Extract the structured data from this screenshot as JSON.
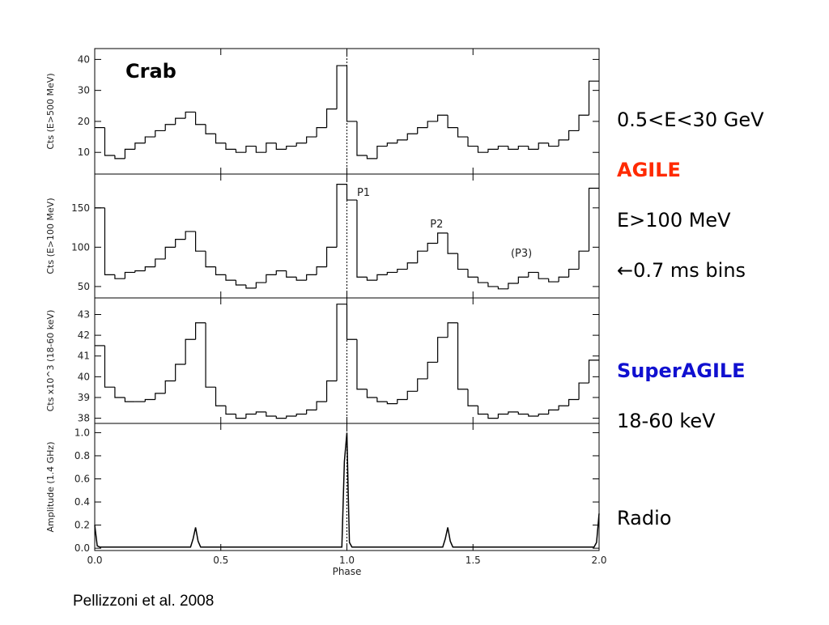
{
  "labels": {
    "crab": "Crab",
    "band1": "0.5<E<30 GeV",
    "agile": "AGILE",
    "band2": "E>100 MeV",
    "bins_note": "←0.7 ms bins",
    "superagile": "SuperAGILE",
    "band3": "18-60 keV",
    "radio": "Radio",
    "credit": "Pellizzoni et al. 2008"
  },
  "chart_data": [
    {
      "type": "histogram",
      "ylabel": "Cts (E>500 MeV)",
      "color": "#000000",
      "ylim": [
        3,
        43.5
      ],
      "yticks": [
        10,
        20,
        30,
        40
      ],
      "reference_line_x": 1,
      "bins": [
        0,
        0.04,
        0.08,
        0.12,
        0.16,
        0.2,
        0.24,
        0.28,
        0.32,
        0.36,
        0.4,
        0.44,
        0.48,
        0.52,
        0.56,
        0.6,
        0.64,
        0.68,
        0.72,
        0.76,
        0.8,
        0.84,
        0.88,
        0.92,
        0.96,
        1,
        1.04,
        1.08,
        1.12,
        1.16,
        1.2,
        1.24,
        1.28,
        1.32,
        1.36,
        1.4,
        1.44,
        1.48,
        1.52,
        1.56,
        1.6,
        1.64,
        1.68,
        1.72,
        1.76,
        1.8,
        1.84,
        1.88,
        1.92,
        1.96,
        2
      ],
      "values": [
        18,
        9,
        8,
        11,
        13,
        15,
        17,
        19,
        21,
        23,
        19,
        16,
        13,
        11,
        10,
        12,
        10,
        13,
        11,
        12,
        13,
        15,
        18,
        24,
        38,
        20,
        9,
        8,
        12,
        13,
        14,
        16,
        18,
        20,
        22,
        18,
        15,
        12,
        10,
        11,
        12,
        11,
        12,
        11,
        13,
        12,
        14,
        17,
        22,
        33
      ]
    },
    {
      "type": "histogram",
      "ylabel": "Cts (E>100 MeV)",
      "color": "#000000",
      "ylim": [
        35.5,
        193
      ],
      "yticks": [
        50,
        100,
        150
      ],
      "reference_line_x": 1,
      "annotations": [
        {
          "text": "P1",
          "x": 1.04,
          "y": 165
        },
        {
          "text": "P2",
          "x": 1.33,
          "y": 125
        },
        {
          "text": "(P3)",
          "x": 1.65,
          "y": 88
        }
      ],
      "bins": [
        0,
        0.04,
        0.08,
        0.12,
        0.16,
        0.2,
        0.24,
        0.28,
        0.32,
        0.36,
        0.4,
        0.44,
        0.48,
        0.52,
        0.56,
        0.6,
        0.64,
        0.68,
        0.72,
        0.76,
        0.8,
        0.84,
        0.88,
        0.92,
        0.96,
        1,
        1.04,
        1.08,
        1.12,
        1.16,
        1.2,
        1.24,
        1.28,
        1.32,
        1.36,
        1.4,
        1.44,
        1.48,
        1.52,
        1.56,
        1.6,
        1.64,
        1.68,
        1.72,
        1.76,
        1.8,
        1.84,
        1.88,
        1.92,
        1.96,
        2
      ],
      "values": [
        150,
        65,
        60,
        68,
        70,
        75,
        85,
        100,
        110,
        120,
        95,
        75,
        65,
        58,
        52,
        48,
        55,
        65,
        70,
        62,
        58,
        65,
        75,
        100,
        180,
        160,
        62,
        58,
        65,
        68,
        72,
        80,
        95,
        105,
        118,
        92,
        72,
        62,
        55,
        50,
        47,
        54,
        62,
        68,
        60,
        56,
        62,
        72,
        95,
        175
      ]
    },
    {
      "type": "histogram",
      "ylabel": "Cts x10^3 (18-60 keV)",
      "color": "#000000",
      "ylim": [
        37.75,
        43.8
      ],
      "yticks": [
        38,
        39,
        40,
        41,
        42,
        43
      ],
      "reference_line_x": 1,
      "bins": [
        0,
        0.04,
        0.08,
        0.12,
        0.16,
        0.2,
        0.24,
        0.28,
        0.32,
        0.36,
        0.4,
        0.44,
        0.48,
        0.52,
        0.56,
        0.6,
        0.64,
        0.68,
        0.72,
        0.76,
        0.8,
        0.84,
        0.88,
        0.92,
        0.96,
        1,
        1.04,
        1.08,
        1.12,
        1.16,
        1.2,
        1.24,
        1.28,
        1.32,
        1.36,
        1.4,
        1.44,
        1.48,
        1.52,
        1.56,
        1.6,
        1.64,
        1.68,
        1.72,
        1.76,
        1.8,
        1.84,
        1.88,
        1.92,
        1.96,
        2
      ],
      "values": [
        41.5,
        39.5,
        39,
        38.8,
        38.8,
        38.9,
        39.2,
        39.8,
        40.6,
        41.8,
        42.6,
        39.5,
        38.6,
        38.2,
        38,
        38.2,
        38.3,
        38.1,
        38,
        38.1,
        38.2,
        38.4,
        38.8,
        39.8,
        43.5,
        41.8,
        39.4,
        39,
        38.8,
        38.7,
        38.9,
        39.3,
        39.9,
        40.7,
        41.9,
        42.6,
        39.4,
        38.6,
        38.2,
        38,
        38.2,
        38.3,
        38.2,
        38.1,
        38.2,
        38.4,
        38.6,
        38.9,
        39.7,
        40.8
      ]
    },
    {
      "type": "line",
      "ylabel": "Amplitude (1.4 GHz)",
      "xlabel": "Phase",
      "color": "#000000",
      "ylim": [
        -0.02,
        1.08
      ],
      "xlim": [
        0,
        2
      ],
      "reference_line_x": 1,
      "yticks": [
        {
          "value": 0,
          "label": "0.0"
        },
        {
          "value": 0.2,
          "label": "0.2"
        },
        {
          "value": 0.4,
          "label": "0.4"
        },
        {
          "value": 0.6,
          "label": "0.6"
        },
        {
          "value": 0.8,
          "label": "0.8"
        },
        {
          "value": 1,
          "label": "1.0"
        }
      ],
      "xticks": [
        {
          "value": 0,
          "label": "0.0"
        },
        {
          "value": 0.5,
          "label": "0.5"
        },
        {
          "value": 1,
          "label": "1.0"
        },
        {
          "value": 1.5,
          "label": "1.5"
        },
        {
          "value": 2,
          "label": "2.0"
        }
      ],
      "x": [
        0,
        0.01,
        0.02,
        0.38,
        0.39,
        0.4,
        0.41,
        0.42,
        0.98,
        0.99,
        1,
        1.005,
        1.01,
        1.02,
        1.38,
        1.39,
        1.4,
        1.41,
        1.42,
        1.98,
        1.99,
        2
      ],
      "values": [
        0.2,
        0.02,
        0.01,
        0.01,
        0.08,
        0.18,
        0.06,
        0.01,
        0.01,
        0.75,
        1,
        0.5,
        0.05,
        0.01,
        0.01,
        0.08,
        0.18,
        0.06,
        0.01,
        0.01,
        0.05,
        0.3
      ]
    }
  ]
}
